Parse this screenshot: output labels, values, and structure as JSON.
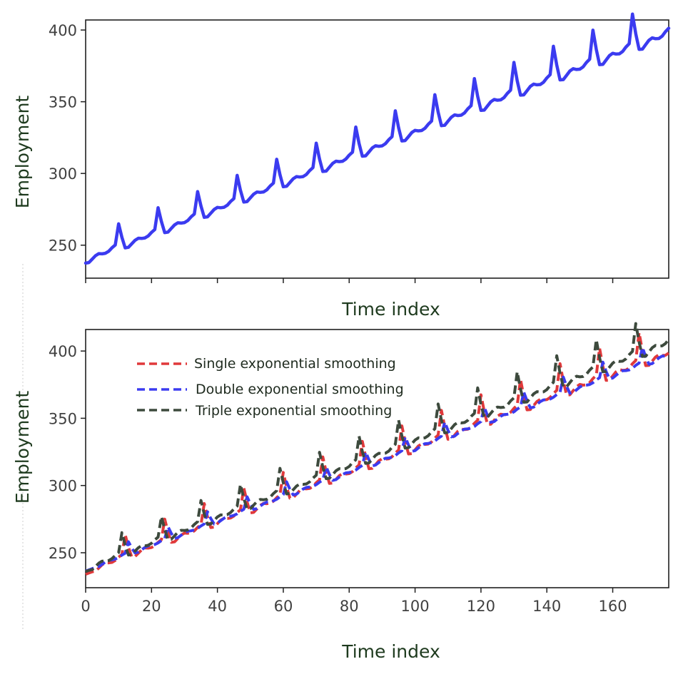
{
  "chart_data": [
    {
      "type": "line",
      "xlabel": "Time index",
      "ylabel": "Employment",
      "xlim": [
        0,
        177
      ],
      "ylim": [
        227,
        407
      ],
      "x_ticks": [
        0,
        20,
        40,
        60,
        80,
        100,
        120,
        140,
        160
      ],
      "x_tick_labels_visible": false,
      "y_ticks": [
        250,
        300,
        350,
        400
      ],
      "y_tick_labels": [
        "250",
        "300",
        "350",
        "400"
      ],
      "grid": false,
      "series": [
        {
          "color": "#3b3bf0",
          "style": "solid",
          "pattern": {
            "n": 178,
            "period": 12,
            "start": 240.5,
            "end": 399,
            "curvature": 2.5e-06,
            "offsets": [
              -3,
              -3.5,
              -2,
              -0.5,
              0,
              -1,
              -1.5,
              -1,
              0.5,
              1.5,
              15,
              5
            ],
            "offset_growth": 0.5
          }
        }
      ]
    },
    {
      "type": "line",
      "xlabel": "Time index",
      "ylabel": "Employment",
      "xlim": [
        0,
        177
      ],
      "ylim": [
        224,
        416
      ],
      "x_ticks": [
        0,
        20,
        40,
        60,
        80,
        100,
        120,
        140,
        160
      ],
      "x_tick_labels": [
        "0",
        "20",
        "40",
        "60",
        "80",
        "100",
        "120",
        "140",
        "160"
      ],
      "y_ticks": [
        250,
        300,
        350,
        400
      ],
      "y_tick_labels": [
        "250",
        "300",
        "350",
        "400"
      ],
      "grid": false,
      "legend_position": "upper-left",
      "series": [
        {
          "name": "Single exponential smoothing",
          "color": "#e0393b",
          "style": "dashed",
          "pattern": {
            "n": 178,
            "period": 12,
            "start": 237,
            "end": 400,
            "curvature": 2.5e-06,
            "offsets": [
              -3,
              -3.5,
              -2,
              -0.5,
              0,
              -1,
              -1.5,
              -1,
              0.5,
              1.5,
              15,
              5
            ],
            "offset_growth": 0.5,
            "lag": 2
          }
        },
        {
          "name": "Double exponential smoothing",
          "color": "#3b3bf0",
          "style": "dashed",
          "pattern": {
            "n": 178,
            "period": 12,
            "start": 238,
            "end": 398,
            "curvature": 2.5e-06,
            "offsets": [
              -3,
              -3.5,
              -2,
              -0.5,
              0,
              -1,
              -1.5,
              -1,
              0.5,
              1.5,
              15,
              5
            ],
            "offset_growth": 0.5,
            "lag": 3,
            "amplitude": 0.55
          }
        },
        {
          "name": "Triple exponential smoothing",
          "color": "#3d4a3d",
          "style": "dashed",
          "pattern": {
            "n": 178,
            "period": 12,
            "start": 239,
            "end": 408,
            "curvature": 2.5e-06,
            "offsets": [
              -3,
              -3.5,
              -2,
              -0.5,
              0,
              -1,
              -1.5,
              -1,
              0.5,
              1.5,
              15,
              5
            ],
            "offset_growth": 0.5,
            "lag": 1
          }
        }
      ]
    }
  ]
}
